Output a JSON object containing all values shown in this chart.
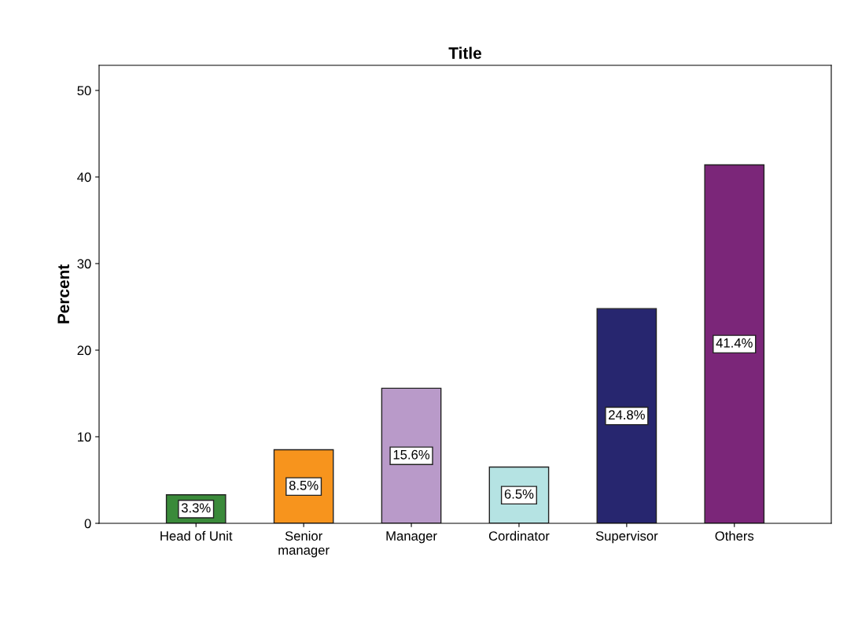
{
  "chart_data": {
    "type": "bar",
    "title": "Title",
    "ylabel": "Percent",
    "categories": [
      "Head of Unit",
      "Senior\nmanager",
      "Manager",
      "Cordinator",
      "Supervisor",
      "Others"
    ],
    "values": [
      3.3,
      8.5,
      15.6,
      6.5,
      24.8,
      41.4
    ],
    "colors": [
      "#3a8a3a",
      "#f7941d",
      "#b99ac9",
      "#b5e3e3",
      "#27266f",
      "#7b2679"
    ],
    "value_labels": [
      "3.3%",
      "8.5%",
      "15.6%",
      "6.5%",
      "24.8%",
      "41.4%"
    ],
    "ylim": [
      0,
      52.9
    ],
    "yticks": [
      0,
      10,
      20,
      30,
      40,
      50
    ],
    "grid": false,
    "legend": false
  }
}
